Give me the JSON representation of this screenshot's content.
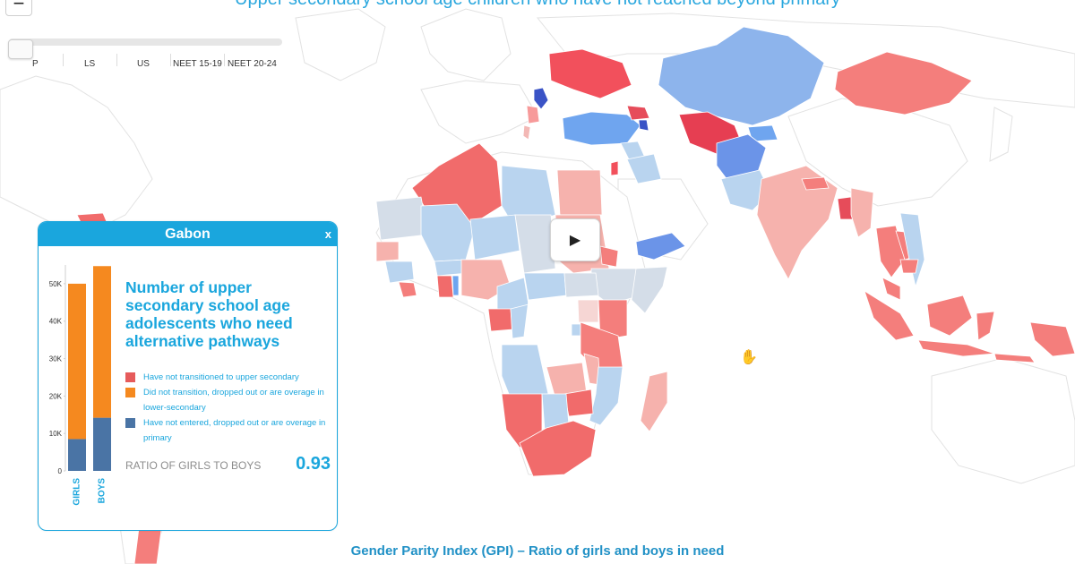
{
  "header": {
    "title": "Upper secondary school age children who have not reached beyond primary"
  },
  "zoom": {
    "out_label": "−"
  },
  "slider": {
    "ticks": [
      "P",
      "LS",
      "US",
      "NEET 15-19",
      "NEET 20-24"
    ]
  },
  "map": {
    "play_glyph": "▶",
    "cursor_glyph": "✋",
    "colors": {
      "background": "#ffffff",
      "land_nodata": "#ffffff",
      "border": "#e3e3e3"
    }
  },
  "popup": {
    "title": "Gabon",
    "close_label": "x",
    "heading": "Number of upper secondary school age adolescents who need alternative pathways",
    "legend": [
      {
        "label": "Have not transitioned to upper secondary",
        "color": "#e65b5b"
      },
      {
        "label": "Did not transition, dropped out or are overage in lower-secondary",
        "color": "#f5891f"
      },
      {
        "label": "Have not entered, dropped out or are overage in primary",
        "color": "#4a74a5"
      }
    ],
    "ratio_label": "RATIO OF GIRLS TO BOYS",
    "ratio_value": "0.93"
  },
  "chart_data": {
    "type": "bar",
    "stacked": true,
    "categories": [
      "GIRLS",
      "BOYS"
    ],
    "series": [
      {
        "name": "Have not entered, dropped out or are overage in primary",
        "color": "#4a74a5",
        "values": [
          8500,
          14200
        ]
      },
      {
        "name": "Did not transition, dropped out or are overage in lower-secondary",
        "color": "#f5891f",
        "values": [
          41500,
          40500
        ]
      }
    ],
    "y_ticks": [
      "0",
      "10K",
      "20K",
      "30K",
      "40K",
      "50K"
    ],
    "ylim": [
      0,
      55000
    ]
  },
  "footer": {
    "title": "Gender Parity Index (GPI) – Ratio of girls and boys in need"
  }
}
